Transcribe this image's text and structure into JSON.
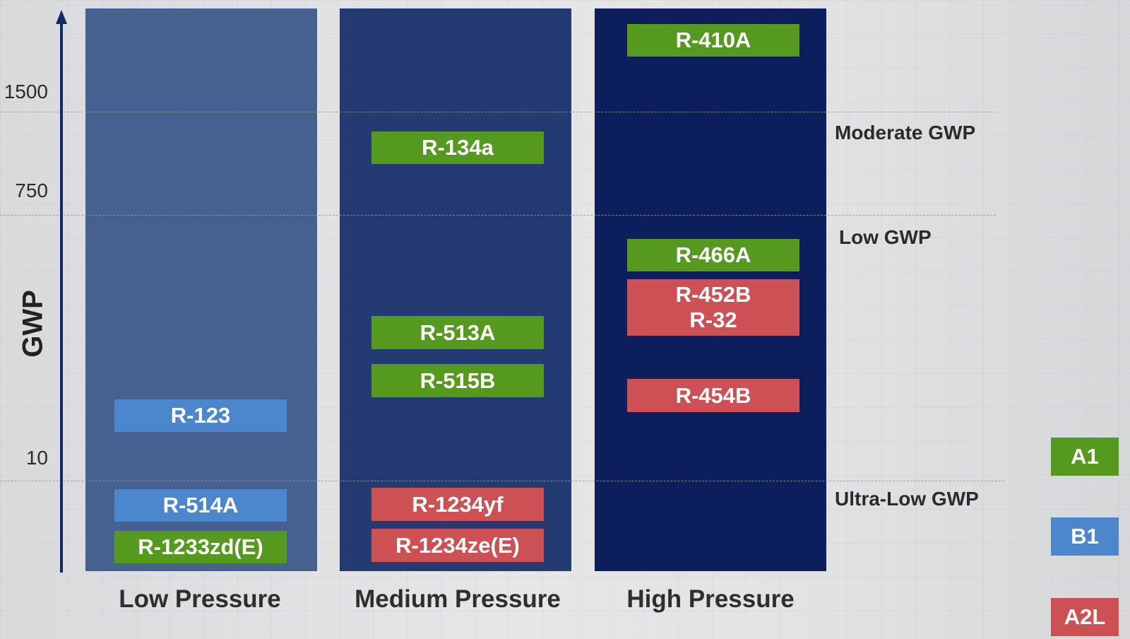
{
  "axis": {
    "label": "GWP",
    "ticks": [
      "1500",
      "750",
      "10"
    ]
  },
  "bands": [
    "Moderate GWP",
    "Low GWP",
    "Ultra-Low GWP"
  ],
  "columns": [
    "Low Pressure",
    "Medium Pressure",
    "High Pressure"
  ],
  "classes": {
    "A1": "#559a1e",
    "B1": "#4c86cc",
    "A2L": "#cd5154"
  },
  "refrigerants": {
    "low": [
      {
        "lines": [
          "R-123"
        ],
        "class": "B1"
      },
      {
        "lines": [
          "R-514A"
        ],
        "class": "B1"
      },
      {
        "lines": [
          "R-1233zd(E)"
        ],
        "class": "A1"
      }
    ],
    "medium": [
      {
        "lines": [
          "R-134a"
        ],
        "class": "A1"
      },
      {
        "lines": [
          "R-513A"
        ],
        "class": "A1"
      },
      {
        "lines": [
          "R-515B"
        ],
        "class": "A1"
      },
      {
        "lines": [
          "R-1234yf"
        ],
        "class": "A2L"
      },
      {
        "lines": [
          "R-1234ze(E)"
        ],
        "class": "A2L"
      }
    ],
    "high": [
      {
        "lines": [
          "R-410A"
        ],
        "class": "A1"
      },
      {
        "lines": [
          "R-466A"
        ],
        "class": "A1"
      },
      {
        "lines": [
          "R-452B",
          "R-32"
        ],
        "class": "A2L"
      },
      {
        "lines": [
          "R-454B"
        ],
        "class": "A2L"
      }
    ]
  },
  "legend": [
    "A1",
    "B1",
    "A2L"
  ]
}
